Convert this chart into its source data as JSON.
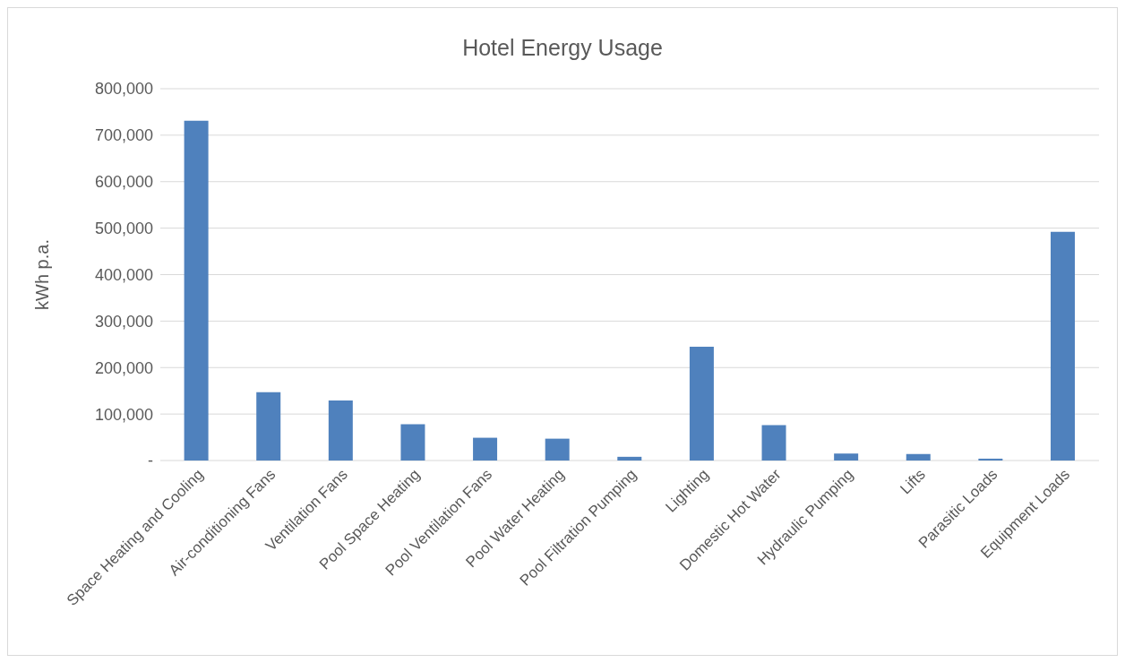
{
  "chart_data": {
    "type": "bar",
    "title": "Hotel Energy Usage",
    "ylabel": "kWh p.a.",
    "categories": [
      "Space Heating and Cooling",
      "Air-conditioning Fans",
      "Ventilation Fans",
      "Pool Space Heating",
      "Pool Ventilation Fans",
      "Pool Water Heating",
      "Pool Filtration Pumping",
      "Lighting",
      "Domestic Hot Water",
      "Hydraulic Pumping",
      "Lifts",
      "Parasitic Loads",
      "Equipment Loads"
    ],
    "values": [
      731000,
      147000,
      129000,
      78000,
      49000,
      47000,
      8000,
      245000,
      76000,
      15000,
      14000,
      4000,
      492000
    ],
    "color": "#4f81bd",
    "ylim": [
      0,
      800000
    ],
    "yticks": [
      {
        "value": 0,
        "label": "-"
      },
      {
        "value": 100000,
        "label": "100,000"
      },
      {
        "value": 200000,
        "label": "200,000"
      },
      {
        "value": 300000,
        "label": "300,000"
      },
      {
        "value": 400000,
        "label": "400,000"
      },
      {
        "value": 500000,
        "label": "500,000"
      },
      {
        "value": 600000,
        "label": "600,000"
      },
      {
        "value": 700000,
        "label": "700,000"
      },
      {
        "value": 800000,
        "label": "800,000"
      }
    ],
    "grid": "y",
    "legend": false
  }
}
